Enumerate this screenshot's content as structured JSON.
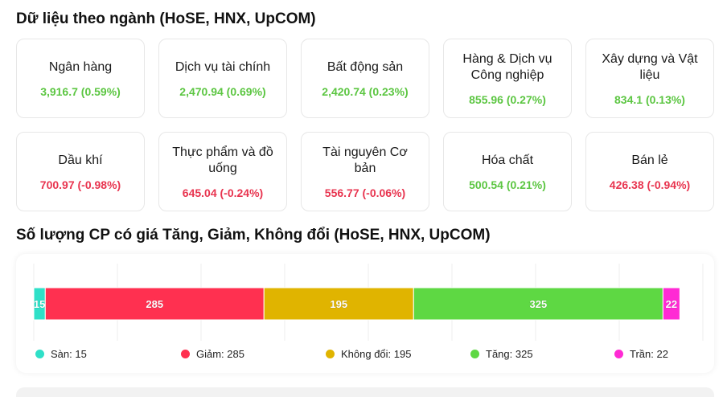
{
  "sector_section": {
    "title": "Dữ liệu theo ngành (HoSE, HNX, UpCOM)",
    "cards": [
      {
        "name": "Ngân hàng",
        "value": "3,916.7 (0.59%)",
        "trend": "up"
      },
      {
        "name": "Dịch vụ tài chính",
        "value": "2,470.94 (0.69%)",
        "trend": "up"
      },
      {
        "name": "Bất động sản",
        "value": "2,420.74 (0.23%)",
        "trend": "up"
      },
      {
        "name": "Hàng & Dịch vụ Công nghiệp",
        "value": "855.96 (0.27%)",
        "trend": "up"
      },
      {
        "name": "Xây dựng và Vật liệu",
        "value": "834.1 (0.13%)",
        "trend": "up"
      },
      {
        "name": "Dầu khí",
        "value": "700.97 (-0.98%)",
        "trend": "down"
      },
      {
        "name": "Thực phẩm và đồ uống",
        "value": "645.04 (-0.24%)",
        "trend": "down"
      },
      {
        "name": "Tài nguyên Cơ bản",
        "value": "556.77 (-0.06%)",
        "trend": "down"
      },
      {
        "name": "Hóa chất",
        "value": "500.54 (0.21%)",
        "trend": "up"
      },
      {
        "name": "Bán lẻ",
        "value": "426.38 (-0.94%)",
        "trend": "down"
      }
    ]
  },
  "breadth_section": {
    "title": "Số lượng CP có giá Tăng, Giảm, Không đổi (HoSE, HNX, UpCOM)"
  },
  "colors": {
    "up": "#5cc642",
    "down": "#e8344f"
  },
  "chart_data": {
    "type": "bar",
    "orientation": "horizontal-stacked",
    "series": [
      {
        "name": "Sàn",
        "value": 15,
        "color": "#2fe0c8"
      },
      {
        "name": "Giảm",
        "value": 285,
        "color": "#ff3050"
      },
      {
        "name": "Không đổi",
        "value": 195,
        "color": "#e0b400"
      },
      {
        "name": "Tăng",
        "value": 325,
        "color": "#5ed843"
      },
      {
        "name": "Trần",
        "value": 22,
        "color": "#ff2ad4"
      }
    ],
    "legend_labels": [
      "Sàn: 15",
      "Giảm: 285",
      "Không đổi: 195",
      "Tăng: 325",
      "Trần: 22"
    ],
    "xlim": [
      0,
      872
    ],
    "grid": true,
    "legend_position": "bottom"
  }
}
